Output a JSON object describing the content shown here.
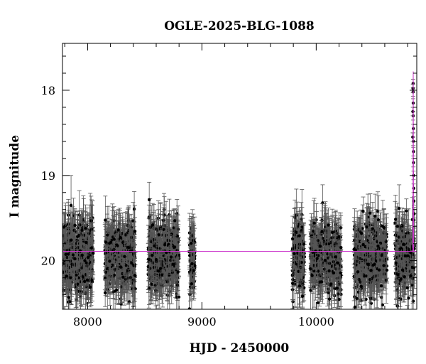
{
  "chart_data": {
    "type": "scatter",
    "title": "OGLE-2025-BLG-1088",
    "xlabel": "HJD - 2450000",
    "ylabel": "I magnitude",
    "xlim": [
      7780,
      10880
    ],
    "ylim": [
      20.57,
      17.45
    ],
    "y_inverted": true,
    "grid": false,
    "legend": "none",
    "x_ticks": [
      8000,
      9000,
      10000
    ],
    "x_tick_labels": [
      "8000",
      "9000",
      "10000"
    ],
    "y_ticks": [
      18,
      19,
      20
    ],
    "y_tick_labels": [
      "18",
      "19",
      "20"
    ],
    "x_minor_step": 200,
    "y_minor_step": 0.2,
    "colors": {
      "points": "#000000",
      "errorbars": "#555555",
      "model": "#cc33cc"
    },
    "seasons": [
      {
        "x_start": 7785,
        "x_end": 8050,
        "mag_mean": 19.95,
        "mag_scatter": 0.2,
        "err_mean": 0.22,
        "n_points": 380
      },
      {
        "x_start": 8150,
        "x_end": 8420,
        "mag_mean": 19.95,
        "mag_scatter": 0.2,
        "err_mean": 0.22,
        "n_points": 360
      },
      {
        "x_start": 8530,
        "x_end": 8800,
        "mag_mean": 19.95,
        "mag_scatter": 0.2,
        "err_mean": 0.22,
        "n_points": 360
      },
      {
        "x_start": 8890,
        "x_end": 8940,
        "mag_mean": 19.98,
        "mag_scatter": 0.18,
        "err_mean": 0.22,
        "n_points": 70
      },
      {
        "x_start": 9790,
        "x_end": 9900,
        "mag_mean": 19.98,
        "mag_scatter": 0.2,
        "err_mean": 0.22,
        "n_points": 140
      },
      {
        "x_start": 9950,
        "x_end": 10220,
        "mag_mean": 19.95,
        "mag_scatter": 0.2,
        "err_mean": 0.22,
        "n_points": 340
      },
      {
        "x_start": 10330,
        "x_end": 10620,
        "mag_mean": 19.95,
        "mag_scatter": 0.2,
        "err_mean": 0.22,
        "n_points": 340
      },
      {
        "x_start": 10690,
        "x_end": 10860,
        "mag_mean": 19.95,
        "mag_scatter": 0.2,
        "err_mean": 0.22,
        "n_points": 200
      }
    ],
    "peak_points": [
      {
        "x": 10848,
        "y": 17.92
      },
      {
        "x": 10848,
        "y": 18.02
      },
      {
        "x": 10849,
        "y": 18.15
      },
      {
        "x": 10849,
        "y": 18.3
      },
      {
        "x": 10850,
        "y": 18.45
      },
      {
        "x": 10850,
        "y": 18.6
      },
      {
        "x": 10851,
        "y": 18.72
      },
      {
        "x": 10851,
        "y": 18.85
      },
      {
        "x": 10852,
        "y": 19.0
      },
      {
        "x": 10853,
        "y": 19.15
      },
      {
        "x": 10855,
        "y": 19.3
      },
      {
        "x": 10857,
        "y": 19.45
      },
      {
        "x": 10845,
        "y": 18.55
      },
      {
        "x": 10846,
        "y": 18.25
      },
      {
        "x": 10847,
        "y": 17.98
      }
    ],
    "special_points": [
      {
        "x": 7855,
        "y": 19.35
      }
    ],
    "model_baseline": 19.89,
    "model_peak": {
      "t0": 10849,
      "peak_mag": 17.78,
      "half_width": 3
    }
  }
}
